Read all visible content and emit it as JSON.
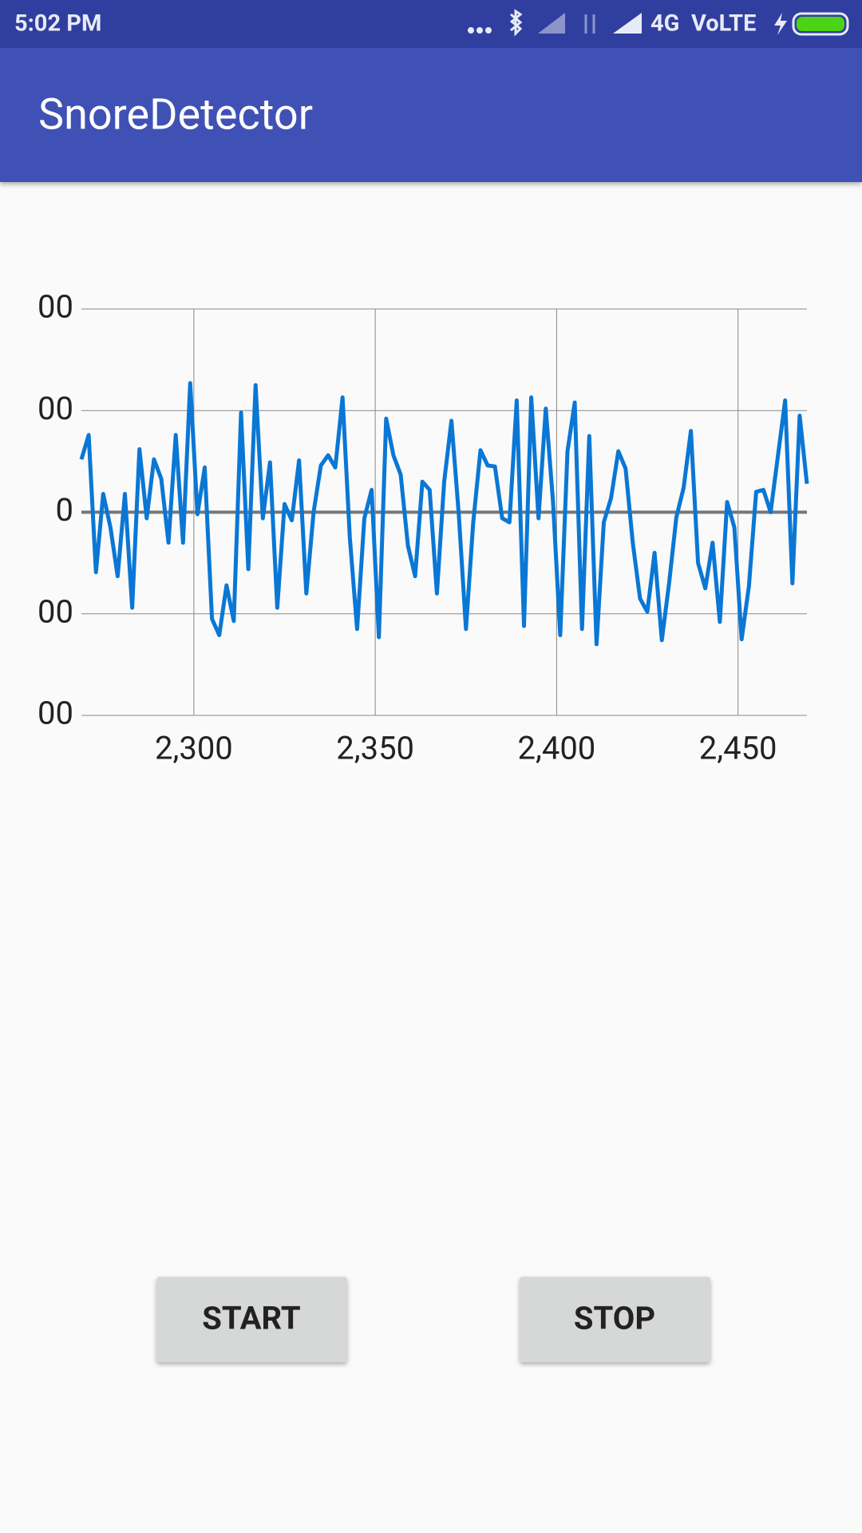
{
  "status_bar": {
    "time": "5:02 PM",
    "network": "4G",
    "volte": "VoLTE"
  },
  "app_bar": {
    "title": "SnoreDetector"
  },
  "chart_data": {
    "type": "line",
    "color": "#0a77d5",
    "x": [
      2269,
      2271,
      2273,
      2275,
      2277,
      2279,
      2281,
      2283,
      2285,
      2287,
      2289,
      2291,
      2293,
      2295,
      2297,
      2299,
      2301,
      2303,
      2305,
      2307,
      2309,
      2311,
      2313,
      2315,
      2317,
      2319,
      2321,
      2323,
      2325,
      2327,
      2329,
      2331,
      2333,
      2335,
      2337,
      2339,
      2341,
      2343,
      2345,
      2347,
      2349,
      2351,
      2353,
      2355,
      2357,
      2359,
      2361,
      2363,
      2365,
      2367,
      2369,
      2371,
      2373,
      2375,
      2377,
      2379,
      2381,
      2383,
      2385,
      2387,
      2389,
      2391,
      2393,
      2395,
      2397,
      2399,
      2401,
      2403,
      2405,
      2407,
      2409,
      2411,
      2413,
      2415,
      2417,
      2419,
      2421,
      2423,
      2425,
      2427,
      2429,
      2431,
      2433,
      2435,
      2437,
      2439,
      2441,
      2443,
      2445,
      2447,
      2449,
      2451,
      2453,
      2455,
      2457,
      2459,
      2461,
      2463,
      2465,
      2467,
      2469
    ],
    "values": [
      52,
      76,
      -59,
      18,
      -15,
      -63,
      18,
      -94,
      62,
      -6,
      52,
      33,
      -30,
      76,
      -30,
      127,
      -2,
      44,
      -105,
      -121,
      -72,
      -107,
      98,
      -56,
      125,
      -6,
      49,
      -94,
      8,
      -8,
      51,
      -80,
      0,
      46,
      56,
      44,
      113,
      -25,
      -115,
      -6,
      22,
      -123,
      92,
      56,
      37,
      -33,
      -63,
      30,
      22,
      -80,
      30,
      90,
      -1,
      -115,
      -10,
      61,
      46,
      45,
      -6,
      -10,
      110,
      -112,
      113,
      -6,
      102,
      10,
      -121,
      60,
      108,
      -115,
      75,
      -130,
      -10,
      14,
      60,
      43,
      -30,
      -85,
      -98,
      -40,
      -126,
      -70,
      -5,
      24,
      80,
      -50,
      -75,
      -30,
      -108,
      10,
      -15,
      -125,
      -73,
      20,
      22,
      0,
      55,
      110,
      -70,
      95,
      28
    ],
    "xlim": [
      2269,
      2469
    ],
    "ylim": [
      -200,
      200
    ],
    "xticks": [
      {
        "value": 2300,
        "label": "2,300"
      },
      {
        "value": 2350,
        "label": "2,350"
      },
      {
        "value": 2400,
        "label": "2,400"
      },
      {
        "value": 2450,
        "label": "2,450"
      }
    ],
    "yticks": [
      {
        "value": -200,
        "label": "00"
      },
      {
        "value": -100,
        "label": "00"
      },
      0,
      {
        "value": 100,
        "label": "00"
      },
      {
        "value": 200,
        "label": "00"
      }
    ],
    "grid": true
  },
  "buttons": [
    "START",
    "STOP"
  ]
}
